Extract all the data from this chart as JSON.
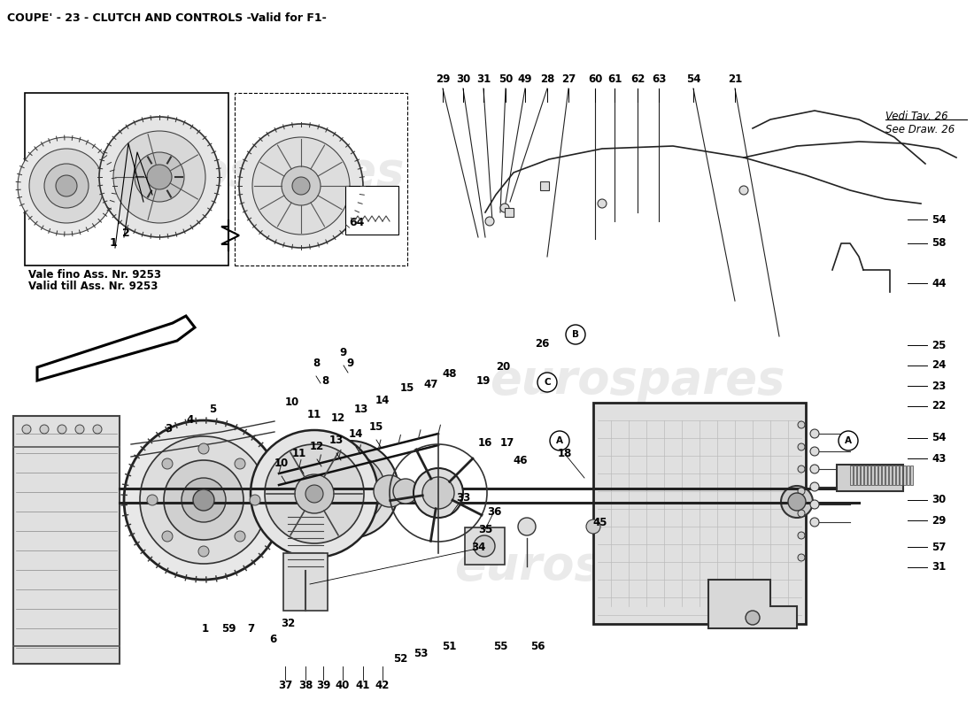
{
  "title": "COUPE' - 23 - CLUTCH AND CONTROLS -Valid for F1-",
  "title_fontsize": 9,
  "bg": "#ffffff",
  "fg": "#000000",
  "vedi_tav": "Vedi Tav. 26",
  "see_draw": "See Draw. 26",
  "subtitle_box1_line1": "Vale fino Ass. Nr. 9253",
  "subtitle_box1_line2": "Valid till Ass. Nr. 9253",
  "watermark1": "eurospares",
  "watermark2": "eurospares",
  "label_fs": 8,
  "top_labels": [
    [
      "29",
      500,
      100
    ],
    [
      "30",
      523,
      100
    ],
    [
      "31",
      546,
      100
    ],
    [
      "50",
      571,
      100
    ],
    [
      "49",
      593,
      100
    ],
    [
      "28",
      618,
      100
    ],
    [
      "27",
      642,
      100
    ],
    [
      "60",
      672,
      100
    ],
    [
      "61",
      694,
      100
    ],
    [
      "62",
      720,
      100
    ],
    [
      "63",
      744,
      100
    ],
    [
      "54",
      783,
      100
    ],
    [
      "21",
      830,
      100
    ]
  ],
  "right_labels": [
    [
      "54",
      1050,
      248
    ],
    [
      "58",
      1050,
      275
    ],
    [
      "44",
      1050,
      320
    ],
    [
      "25",
      1050,
      390
    ],
    [
      "24",
      1050,
      413
    ],
    [
      "23",
      1050,
      436
    ],
    [
      "22",
      1050,
      459
    ],
    [
      "54",
      1050,
      495
    ],
    [
      "43",
      1050,
      518
    ],
    [
      "30",
      1050,
      565
    ],
    [
      "29",
      1050,
      588
    ],
    [
      "57",
      1050,
      618
    ],
    [
      "31",
      1050,
      641
    ]
  ],
  "main_labels": [
    [
      "8",
      367,
      430
    ],
    [
      "9",
      395,
      410
    ],
    [
      "10",
      330,
      455
    ],
    [
      "11",
      355,
      468
    ],
    [
      "12",
      382,
      473
    ],
    [
      "13",
      408,
      463
    ],
    [
      "14",
      432,
      452
    ],
    [
      "15",
      460,
      438
    ],
    [
      "47",
      487,
      435
    ],
    [
      "48",
      508,
      422
    ],
    [
      "19",
      546,
      430
    ],
    [
      "20",
      568,
      415
    ],
    [
      "26",
      612,
      388
    ],
    [
      "16",
      548,
      500
    ],
    [
      "17",
      573,
      500
    ],
    [
      "46",
      588,
      520
    ],
    [
      "18",
      638,
      513
    ],
    [
      "33",
      523,
      562
    ],
    [
      "36",
      558,
      578
    ],
    [
      "35",
      548,
      598
    ],
    [
      "34",
      540,
      618
    ],
    [
      "45",
      678,
      590
    ],
    [
      "3",
      190,
      485
    ],
    [
      "4",
      215,
      475
    ],
    [
      "5",
      240,
      462
    ]
  ],
  "bottom_labels": [
    [
      "1",
      232,
      710
    ],
    [
      "59",
      258,
      710
    ],
    [
      "7",
      283,
      710
    ],
    [
      "6",
      308,
      722
    ],
    [
      "32",
      325,
      705
    ],
    [
      "37",
      322,
      775
    ],
    [
      "38",
      345,
      775
    ],
    [
      "39",
      365,
      775
    ],
    [
      "40",
      387,
      775
    ],
    [
      "41",
      410,
      775
    ],
    [
      "42",
      432,
      775
    ],
    [
      "52",
      452,
      745
    ],
    [
      "53",
      475,
      738
    ],
    [
      "51",
      507,
      730
    ],
    [
      "55",
      565,
      730
    ],
    [
      "56",
      607,
      730
    ]
  ],
  "circle_labels": [
    [
      "A",
      632,
      498
    ],
    [
      "B",
      650,
      378
    ],
    [
      "C",
      618,
      432
    ],
    [
      "A",
      958,
      498
    ]
  ],
  "inset1_label1": "2",
  "inset1_label2": "1",
  "inset2_label": "64"
}
